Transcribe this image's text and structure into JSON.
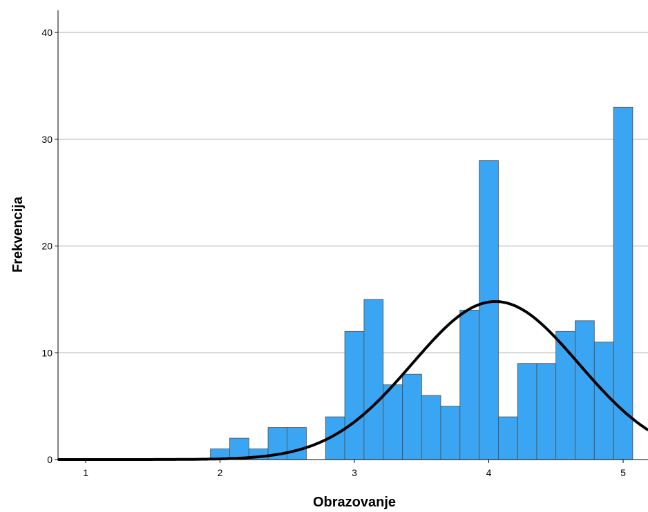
{
  "chart_data": {
    "type": "bar",
    "xlabel": "Obrazovanje",
    "ylabel": "Frekvencija",
    "xlim": [
      0.8,
      5.18
    ],
    "ylim": [
      0,
      42
    ],
    "x_ticks": [
      1,
      2,
      3,
      4,
      5
    ],
    "y_ticks": [
      0,
      10,
      20,
      30,
      40
    ],
    "grid": true,
    "bin_width": 0.143,
    "bins": [
      {
        "x": 2.0,
        "value": 1
      },
      {
        "x": 2.143,
        "value": 2
      },
      {
        "x": 2.286,
        "value": 1
      },
      {
        "x": 2.429,
        "value": 3
      },
      {
        "x": 2.571,
        "value": 3
      },
      {
        "x": 2.857,
        "value": 4
      },
      {
        "x": 3.0,
        "value": 12
      },
      {
        "x": 3.143,
        "value": 15
      },
      {
        "x": 3.286,
        "value": 7
      },
      {
        "x": 3.429,
        "value": 8
      },
      {
        "x": 3.571,
        "value": 6
      },
      {
        "x": 3.714,
        "value": 5
      },
      {
        "x": 3.857,
        "value": 14
      },
      {
        "x": 4.0,
        "value": 28
      },
      {
        "x": 4.143,
        "value": 4
      },
      {
        "x": 4.286,
        "value": 9
      },
      {
        "x": 4.429,
        "value": 9
      },
      {
        "x": 4.571,
        "value": 12
      },
      {
        "x": 4.714,
        "value": 13
      },
      {
        "x": 4.857,
        "value": 11
      },
      {
        "x": 5.0,
        "value": 33
      }
    ],
    "normal_curve": {
      "mean": 4.05,
      "sd": 0.62,
      "peak": 14.8
    },
    "colors": {
      "bar": "#3aa6f3",
      "bar_edge": "#4a4a4a",
      "curve": "#000000",
      "grid": "#c8c8c8"
    }
  }
}
